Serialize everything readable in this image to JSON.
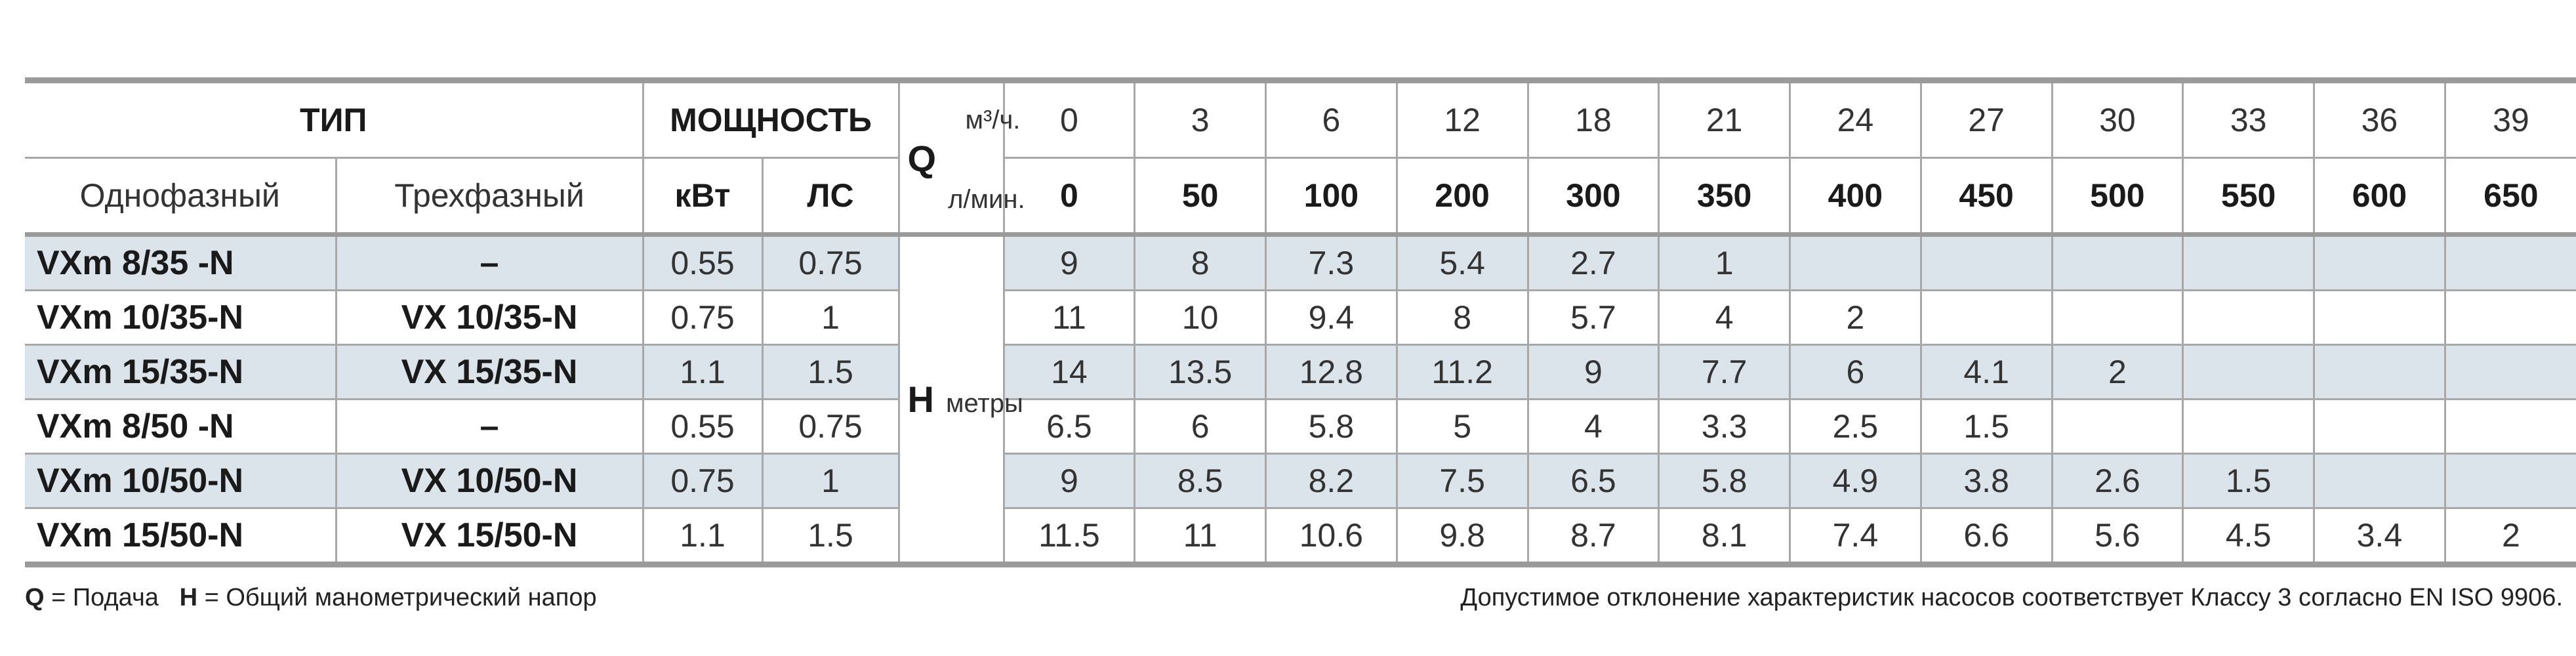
{
  "header": {
    "type_label": "ТИП",
    "single_phase": "Однофазный",
    "three_phase": "Трехфазный",
    "power_label": "МОЩНОСТЬ",
    "kw": "кВт",
    "hp": "ЛС",
    "q_symbol": "Q",
    "q_unit_m3h": "м³/ч.",
    "q_unit_lmin": "л/мин.",
    "h_symbol": "H",
    "h_unit": "метры",
    "q_m3h": [
      "0",
      "3",
      "6",
      "12",
      "18",
      "21",
      "24",
      "27",
      "30",
      "33",
      "36",
      "39"
    ],
    "q_lmin": [
      "0",
      "50",
      "100",
      "200",
      "300",
      "350",
      "400",
      "450",
      "500",
      "550",
      "600",
      "650"
    ]
  },
  "rows": [
    {
      "single": "VXm 8/35  -N",
      "three": "–",
      "kw": "0.55",
      "hp": "0.75",
      "h": [
        "9",
        "8",
        "7.3",
        "5.4",
        "2.7",
        "1",
        "",
        "",
        "",
        "",
        "",
        ""
      ]
    },
    {
      "single": "VXm 10/35-N",
      "three": "VX 10/35-N",
      "kw": "0.75",
      "hp": "1",
      "h": [
        "11",
        "10",
        "9.4",
        "8",
        "5.7",
        "4",
        "2",
        "",
        "",
        "",
        "",
        ""
      ]
    },
    {
      "single": "VXm 15/35-N",
      "three": "VX 15/35-N",
      "kw": "1.1",
      "hp": "1.5",
      "h": [
        "14",
        "13.5",
        "12.8",
        "11.2",
        "9",
        "7.7",
        "6",
        "4.1",
        "2",
        "",
        "",
        ""
      ]
    },
    {
      "single": "VXm 8/50  -N",
      "three": "–",
      "kw": "0.55",
      "hp": "0.75",
      "h": [
        "6.5",
        "6",
        "5.8",
        "5",
        "4",
        "3.3",
        "2.5",
        "1.5",
        "",
        "",
        "",
        ""
      ]
    },
    {
      "single": "VXm 10/50-N",
      "three": "VX 10/50-N",
      "kw": "0.75",
      "hp": "1",
      "h": [
        "9",
        "8.5",
        "8.2",
        "7.5",
        "6.5",
        "5.8",
        "4.9",
        "3.8",
        "2.6",
        "1.5",
        "",
        ""
      ]
    },
    {
      "single": "VXm 15/50-N",
      "three": "VX 15/50-N",
      "kw": "1.1",
      "hp": "1.5",
      "h": [
        "11.5",
        "11",
        "10.6",
        "9.8",
        "8.7",
        "8.1",
        "7.4",
        "6.6",
        "5.6",
        "4.5",
        "3.4",
        "2"
      ]
    }
  ],
  "footer": {
    "legend_q": "Q",
    "legend_q_text": " = Подача",
    "legend_h": "H",
    "legend_h_text": " = Общий манометрический напор",
    "note": "Допустимое отклонение характеристик насосов соответствует Классу 3 согласно EN ISO 9906."
  },
  "colors": {
    "row_shade": "#dbe3eb",
    "rule": "#9a9a9a"
  }
}
